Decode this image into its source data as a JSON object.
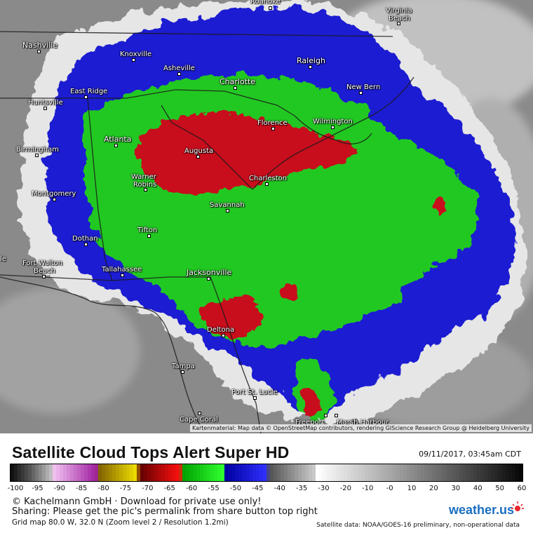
{
  "map": {
    "attribution": "Kartenmaterial: Map data © OpenStreetMap contributors, rendering GIScience Research Group @ Heidelberg University",
    "cities": [
      {
        "name": "Roanoke",
        "size": "normal"
      },
      {
        "name": "Virginia",
        "size": "normal"
      },
      {
        "name": "Beach",
        "size": "normal"
      },
      {
        "name": "Nashville",
        "size": "big"
      },
      {
        "name": "Knoxville",
        "size": "normal"
      },
      {
        "name": "Asheville",
        "size": "normal"
      },
      {
        "name": "Raleigh",
        "size": "big"
      },
      {
        "name": "Charlotte",
        "size": "big"
      },
      {
        "name": "East Ridge",
        "size": "normal"
      },
      {
        "name": "New Bern",
        "size": "normal"
      },
      {
        "name": "Huntsville",
        "size": "normal"
      },
      {
        "name": "Florence",
        "size": "normal"
      },
      {
        "name": "Wilmington",
        "size": "normal"
      },
      {
        "name": "Atlanta",
        "size": "big"
      },
      {
        "name": "Birmingham",
        "size": "normal"
      },
      {
        "name": "Augusta",
        "size": "normal"
      },
      {
        "name": "Warner",
        "size": "normal"
      },
      {
        "name": "Robins",
        "size": "normal"
      },
      {
        "name": "Charleston",
        "size": "normal"
      },
      {
        "name": "Montgomery",
        "size": "normal"
      },
      {
        "name": "Savannah",
        "size": "normal"
      },
      {
        "name": "Tifton",
        "size": "normal"
      },
      {
        "name": "Dothan",
        "size": "normal"
      },
      {
        "name": "Fort Walton",
        "size": "normal"
      },
      {
        "name": "Beach",
        "size": "normal"
      },
      {
        "name": "Tallahassee",
        "size": "normal"
      },
      {
        "name": "Jacksonville",
        "size": "big"
      },
      {
        "name": "Deltona",
        "size": "normal"
      },
      {
        "name": "Tampa",
        "size": "normal"
      },
      {
        "name": "Port St. Lucie",
        "size": "normal"
      },
      {
        "name": "Cape Coral",
        "size": "normal"
      },
      {
        "name": "Freeport",
        "size": "normal"
      },
      {
        "name": "Marsh Harbour",
        "size": "normal"
      },
      {
        "name": "le",
        "size": "normal"
      }
    ]
  },
  "footer": {
    "title": "Satellite Cloud Tops Alert Super HD",
    "timestamp": "09/11/2017, 03:45am CDT",
    "colorbar_ticks": [
      "-100",
      "-95",
      "-90",
      "-85",
      "-80",
      "-75",
      "-70",
      "-65",
      "-60",
      "-55",
      "-50",
      "-45",
      "-40",
      "-35",
      "-30",
      "-20",
      "-10",
      "-0",
      "10",
      "20",
      "30",
      "40",
      "50",
      "60"
    ],
    "copyright": "© Kachelmann GmbH · Download for private use only!",
    "sharing": "Sharing: Please get the pic's permalink from share button top right",
    "grid_info": "Grid map 80.0 W, 32.0 N (Zoom level 2 / Resolution 1.2mi)",
    "satellite_info": "Satellite data: NOAA/GOES-16 preliminary, non-operational data",
    "logo_text": "weather.us"
  },
  "colors": {
    "red": "#c8102e",
    "green": "#1fc21f",
    "blue": "#1414c8",
    "cloud": "#e8e8e8",
    "land": "#8c8c8c"
  }
}
